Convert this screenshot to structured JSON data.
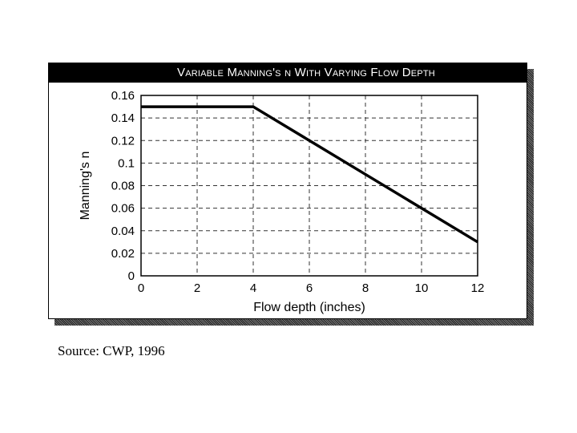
{
  "chart_data": {
    "type": "line",
    "title": "Variable Manning's n With Varying Flow Depth",
    "xlabel": "Flow depth (inches)",
    "ylabel": "Manning's n",
    "x": [
      0,
      4,
      6,
      8,
      10,
      12
    ],
    "series": [
      {
        "name": "Manning's n",
        "values": [
          0.15,
          0.15,
          0.12,
          0.09,
          0.06,
          0.03
        ]
      }
    ],
    "xlim": [
      0,
      12
    ],
    "ylim": [
      0,
      0.16
    ],
    "x_ticks": [
      "0",
      "2",
      "4",
      "6",
      "8",
      "10",
      "12"
    ],
    "y_ticks": [
      "0",
      "0.02",
      "0.04",
      "0.06",
      "0.08",
      "0.1",
      "0.12",
      "0.14",
      "0.16"
    ],
    "grid": true,
    "legend": null
  },
  "caption": {
    "source": "Source: CWP, 1996"
  }
}
